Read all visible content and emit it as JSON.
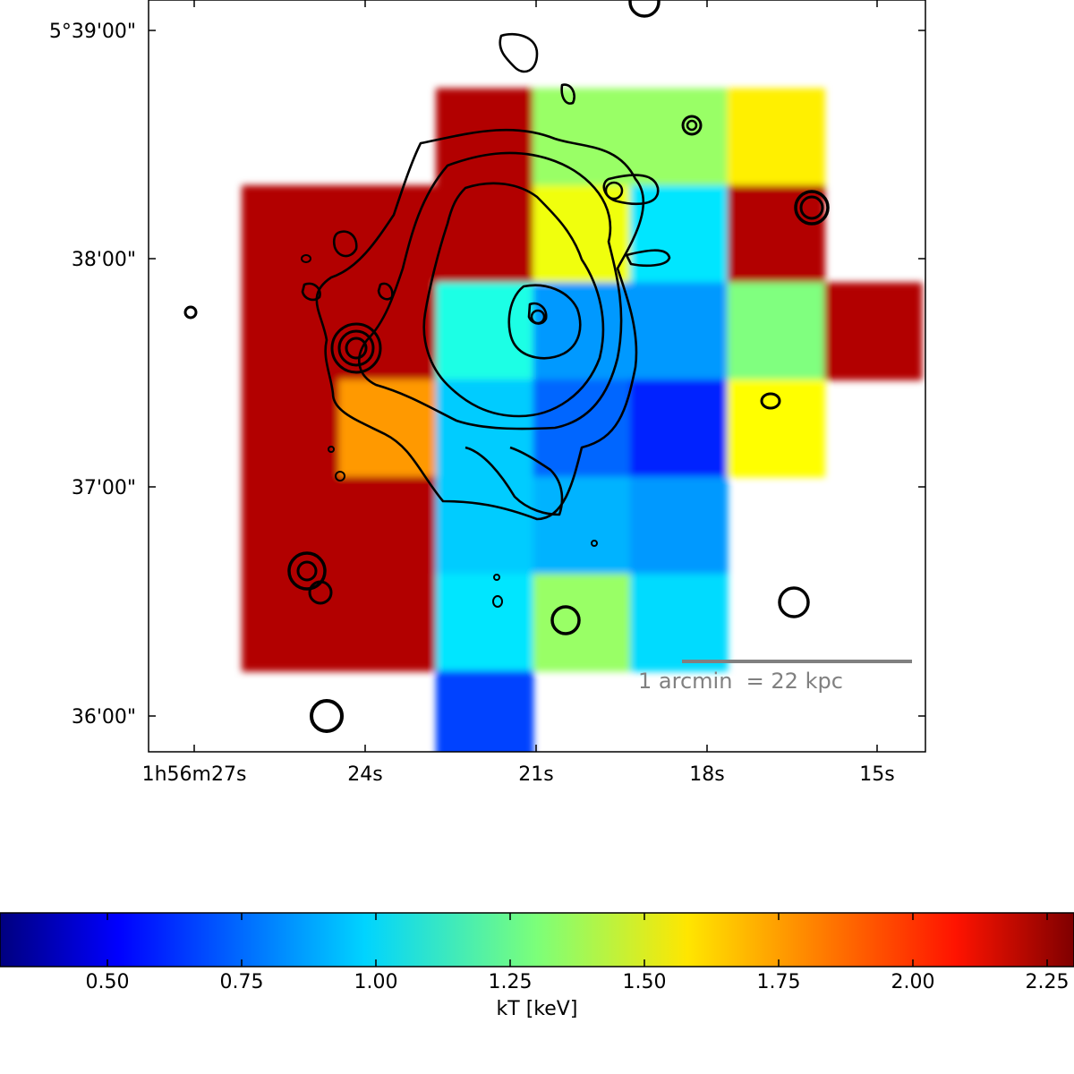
{
  "chart_data": {
    "type": "heatmap",
    "title": "",
    "colormap": "jet",
    "x_axis": {
      "label": "",
      "tick_labels": [
        "1h56m27s",
        "24s",
        "21s",
        "18s",
        "15s"
      ],
      "tick_seconds": [
        27,
        24,
        21,
        18,
        15
      ]
    },
    "y_axis": {
      "label": "",
      "tick_labels": [
        "5°39'00\"",
        "38'00\"",
        "37'00\"",
        "36'00\""
      ],
      "tick_arcmin": [
        39,
        38,
        37,
        36
      ]
    },
    "colorbar": {
      "label": "kT [keV]",
      "range": [
        0.3,
        2.3
      ],
      "ticks": [
        0.5,
        0.75,
        1.0,
        1.25,
        1.5,
        1.75,
        2.0,
        2.25
      ],
      "tick_labels": [
        "0.50",
        "0.75",
        "1.00",
        "1.25",
        "1.50",
        "1.75",
        "2.00",
        "2.25"
      ]
    },
    "scale_bar": {
      "text": "1 arcmin  = 22 kpc",
      "color": "#808080"
    },
    "temperature_map": [
      [
        "",
        "",
        "",
        "",
        "",
        "",
        "",
        ""
      ],
      [
        "",
        "",
        "2.20",
        "1.35",
        "1.35",
        "1.58",
        "",
        ""
      ],
      [
        "2.20",
        "2.20",
        "2.20",
        "1.52",
        "1.00",
        "2.20",
        "",
        ""
      ],
      [
        "2.20",
        "2.20",
        "1.10",
        "0.85",
        "0.85",
        "1.30",
        "2.20",
        ""
      ],
      [
        "2.20",
        "1.75",
        "0.95",
        "0.75",
        "0.62",
        "1.55",
        "",
        ""
      ],
      [
        "2.20",
        "2.20",
        "0.95",
        "0.90",
        "0.85",
        "",
        "",
        ""
      ],
      [
        "2.20",
        "2.20",
        "1.00",
        "1.35",
        "0.98",
        "",
        "",
        ""
      ],
      [
        "",
        "",
        "0.68",
        "",
        "",
        "",
        "",
        ""
      ]
    ],
    "contour_color": "#000000"
  }
}
